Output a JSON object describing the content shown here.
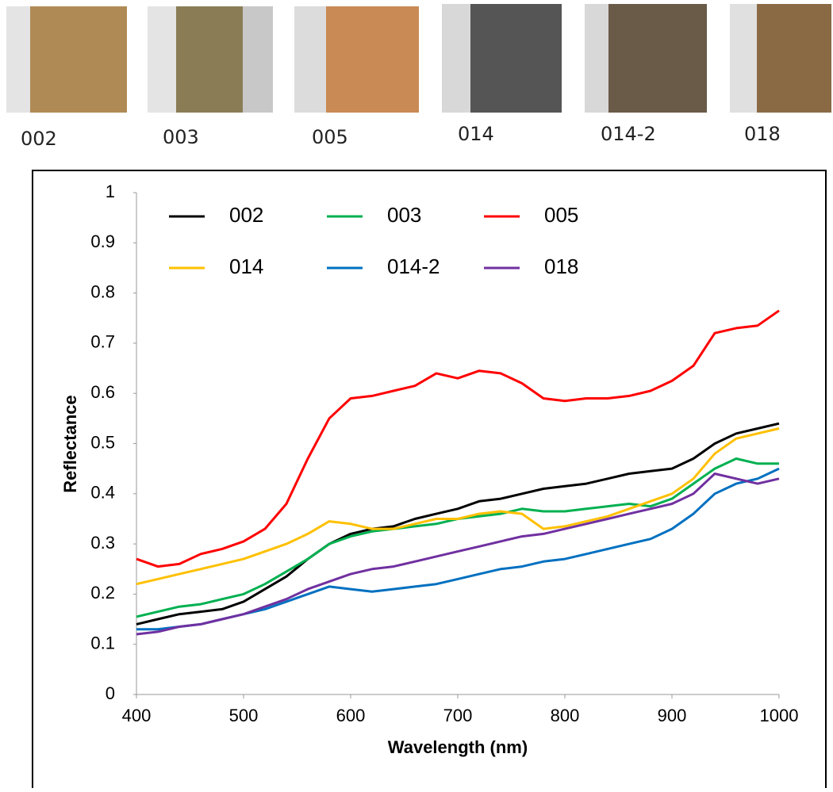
{
  "photos": [
    {
      "label": "002"
    },
    {
      "label": "003"
    },
    {
      "label": "005"
    },
    {
      "label": "014"
    },
    {
      "label": "014-2"
    },
    {
      "label": "018"
    }
  ],
  "chart_data": {
    "type": "line",
    "x_label": "Wavelength (nm)",
    "y_label": "Reflectance",
    "x": [
      400,
      420,
      440,
      460,
      480,
      500,
      520,
      540,
      560,
      580,
      600,
      620,
      640,
      660,
      680,
      700,
      720,
      740,
      760,
      780,
      800,
      820,
      840,
      860,
      880,
      900,
      920,
      940,
      960,
      980,
      1000
    ],
    "xlim": [
      400,
      1000
    ],
    "xticks": [
      400,
      500,
      600,
      700,
      800,
      900,
      1000
    ],
    "ylim": [
      0,
      1
    ],
    "yticks": [
      0,
      0.1,
      0.2,
      0.3,
      0.4,
      0.5,
      0.6,
      0.7,
      0.8,
      0.9,
      1
    ],
    "grid": false,
    "legend_position": "top-left",
    "series": [
      {
        "name": "002",
        "color": "#000000",
        "values": [
          0.14,
          0.15,
          0.16,
          0.165,
          0.17,
          0.185,
          0.21,
          0.235,
          0.27,
          0.3,
          0.32,
          0.33,
          0.335,
          0.35,
          0.36,
          0.37,
          0.385,
          0.39,
          0.4,
          0.41,
          0.415,
          0.42,
          0.43,
          0.44,
          0.445,
          0.45,
          0.47,
          0.5,
          0.52,
          0.53,
          0.54
        ]
      },
      {
        "name": "003",
        "color": "#00b050",
        "values": [
          0.155,
          0.165,
          0.175,
          0.18,
          0.19,
          0.2,
          0.22,
          0.245,
          0.27,
          0.3,
          0.315,
          0.325,
          0.33,
          0.335,
          0.34,
          0.35,
          0.355,
          0.36,
          0.37,
          0.365,
          0.365,
          0.37,
          0.375,
          0.38,
          0.375,
          0.39,
          0.42,
          0.45,
          0.47,
          0.46,
          0.46
        ]
      },
      {
        "name": "005",
        "color": "#ff0000",
        "values": [
          0.27,
          0.255,
          0.26,
          0.28,
          0.29,
          0.305,
          0.33,
          0.38,
          0.47,
          0.55,
          0.59,
          0.595,
          0.605,
          0.615,
          0.64,
          0.63,
          0.645,
          0.64,
          0.62,
          0.59,
          0.585,
          0.59,
          0.59,
          0.595,
          0.605,
          0.625,
          0.655,
          0.72,
          0.73,
          0.735,
          0.765
        ]
      },
      {
        "name": "014",
        "color": "#ffc000",
        "values": [
          0.22,
          0.23,
          0.24,
          0.25,
          0.26,
          0.27,
          0.285,
          0.3,
          0.32,
          0.345,
          0.34,
          0.33,
          0.33,
          0.34,
          0.35,
          0.35,
          0.36,
          0.365,
          0.36,
          0.33,
          0.335,
          0.345,
          0.355,
          0.37,
          0.385,
          0.4,
          0.43,
          0.48,
          0.51,
          0.52,
          0.53
        ]
      },
      {
        "name": "014-2",
        "color": "#0070c0",
        "values": [
          0.13,
          0.13,
          0.135,
          0.14,
          0.15,
          0.16,
          0.17,
          0.185,
          0.2,
          0.215,
          0.21,
          0.205,
          0.21,
          0.215,
          0.22,
          0.23,
          0.24,
          0.25,
          0.255,
          0.265,
          0.27,
          0.28,
          0.29,
          0.3,
          0.31,
          0.33,
          0.36,
          0.4,
          0.42,
          0.43,
          0.45
        ]
      },
      {
        "name": "018",
        "color": "#7030a0",
        "values": [
          0.12,
          0.125,
          0.135,
          0.14,
          0.15,
          0.16,
          0.175,
          0.19,
          0.21,
          0.225,
          0.24,
          0.25,
          0.255,
          0.265,
          0.275,
          0.285,
          0.295,
          0.305,
          0.315,
          0.32,
          0.33,
          0.34,
          0.35,
          0.36,
          0.37,
          0.38,
          0.4,
          0.44,
          0.43,
          0.42,
          0.43
        ]
      }
    ]
  }
}
